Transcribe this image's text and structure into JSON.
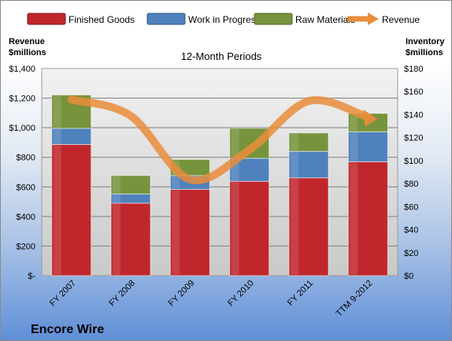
{
  "chart_data": {
    "type": "bar",
    "title": "12-Month Periods",
    "categories": [
      "FY 2007",
      "FY 2008",
      "FY 2009",
      "FY 2010",
      "FY 2011",
      "TTM 9-2012"
    ],
    "stacked": true,
    "series": [
      {
        "name": "Finished Goods",
        "axis": "right",
        "color": "#c0272d",
        "values": [
          114,
          63,
          75,
          82,
          85,
          99
        ]
      },
      {
        "name": "Work in Progress",
        "axis": "right",
        "color": "#4f81bd",
        "values": [
          14,
          8,
          12,
          20,
          23,
          26
        ]
      },
      {
        "name": "Raw Materials",
        "axis": "right",
        "color": "#77933c",
        "values": [
          29,
          16,
          14,
          26,
          16,
          16
        ]
      },
      {
        "name": "Revenue",
        "type": "line",
        "axis": "left",
        "color": "#e98d3b",
        "values": [
          1190,
          1080,
          650,
          850,
          1180,
          1070
        ]
      }
    ],
    "left_axis": {
      "label": "Revenue $millions",
      "label_lines": [
        "Revenue",
        "$millions"
      ],
      "ylim": [
        0,
        1400
      ],
      "ticks": [
        0,
        200,
        400,
        600,
        800,
        1000,
        1200,
        1400
      ],
      "tick_labels": [
        "$-",
        "$200",
        "$400",
        "$600",
        "$800",
        "$1,000",
        "$1,200",
        "$1,400"
      ]
    },
    "right_axis": {
      "label": "Inventory $millions",
      "label_lines": [
        "Inventory",
        "$millions"
      ],
      "ylim": [
        0,
        180
      ],
      "ticks": [
        0,
        20,
        40,
        60,
        80,
        100,
        120,
        140,
        160,
        180
      ],
      "tick_labels": [
        "$0",
        "$20",
        "$40",
        "$60",
        "$80",
        "$100",
        "$120",
        "$140",
        "$160",
        "$180"
      ]
    },
    "grid": true,
    "legend_position": "top"
  },
  "company_label": "Encore Wire"
}
